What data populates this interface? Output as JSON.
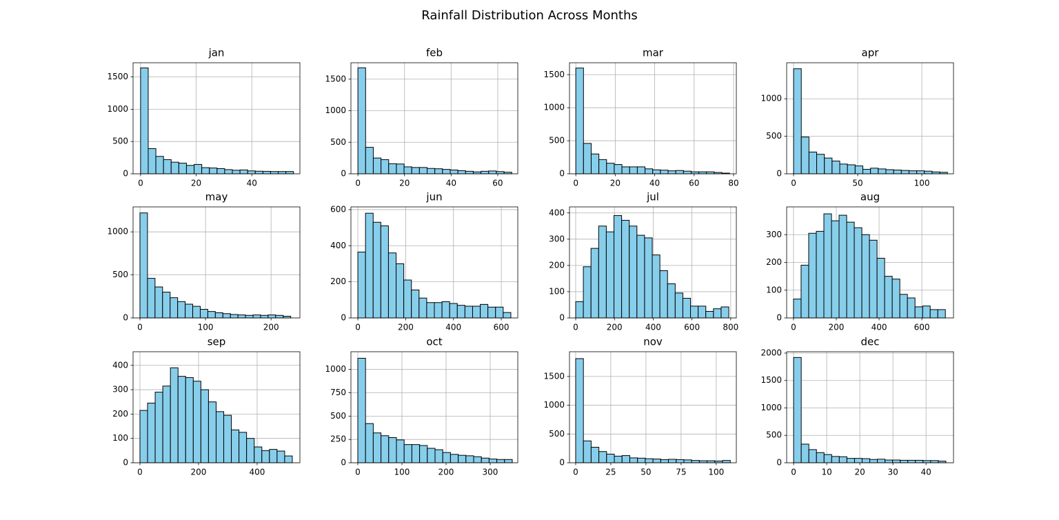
{
  "title": "Rainfall Distribution Across Months",
  "chart_data": [
    {
      "type": "histogram",
      "title": "jan",
      "color": "#87ceeb",
      "edgecolor": "#000000",
      "grid": true,
      "bins": [
        0,
        2.75,
        5.5,
        8.25,
        11,
        13.75,
        16.5,
        19.25,
        22,
        24.75,
        27.5,
        30.25,
        33,
        35.75,
        38.5,
        41.25,
        44,
        46.75,
        49.5,
        52.25,
        55
      ],
      "values": [
        1640,
        390,
        270,
        220,
        180,
        165,
        130,
        145,
        95,
        90,
        80,
        65,
        55,
        60,
        45,
        40,
        38,
        35,
        35,
        35
      ],
      "xlim": [
        -2.7,
        57.3
      ],
      "xticks": [
        0,
        20,
        40
      ],
      "ylim": [
        0,
        1720
      ],
      "yticks": [
        0,
        500,
        1000,
        1500
      ]
    },
    {
      "type": "histogram",
      "title": "feb",
      "color": "#87ceeb",
      "edgecolor": "#000000",
      "grid": true,
      "bins": [
        0,
        3.3,
        6.6,
        9.9,
        13.2,
        16.5,
        19.8,
        23.1,
        26.4,
        29.7,
        33,
        36.3,
        39.6,
        42.9,
        46.2,
        49.5,
        52.8,
        56.1,
        59.4,
        62.7,
        66
      ],
      "values": [
        1680,
        420,
        250,
        225,
        160,
        155,
        110,
        100,
        100,
        85,
        80,
        70,
        60,
        50,
        40,
        30,
        40,
        45,
        35,
        25
      ],
      "xlim": [
        -3,
        68.6
      ],
      "xticks": [
        0,
        20,
        40,
        60
      ],
      "ylim": [
        0,
        1760
      ],
      "yticks": [
        0,
        500,
        1000,
        1500
      ]
    },
    {
      "type": "histogram",
      "title": "mar",
      "color": "#87ceeb",
      "edgecolor": "#000000",
      "grid": true,
      "bins": [
        0,
        3.9,
        7.8,
        11.7,
        15.6,
        19.5,
        23.4,
        27.3,
        31.2,
        35.1,
        39,
        42.9,
        46.8,
        50.7,
        54.6,
        58.5,
        62.4,
        66.3,
        70.2,
        74.1,
        78
      ],
      "values": [
        1600,
        460,
        300,
        215,
        160,
        140,
        105,
        105,
        105,
        75,
        60,
        55,
        45,
        50,
        40,
        30,
        30,
        30,
        20,
        10
      ],
      "xlim": [
        -3.2,
        81.4
      ],
      "xticks": [
        0,
        20,
        40,
        60,
        80
      ],
      "ylim": [
        0,
        1680
      ],
      "yticks": [
        0,
        500,
        1000,
        1500
      ]
    },
    {
      "type": "histogram",
      "title": "apr",
      "color": "#87ceeb",
      "edgecolor": "#000000",
      "grid": true,
      "bins": [
        0,
        6,
        12,
        18,
        24,
        30,
        36,
        42,
        48,
        54,
        60,
        66,
        72,
        78,
        84,
        90,
        96,
        102,
        108,
        114,
        120
      ],
      "values": [
        1400,
        490,
        290,
        260,
        210,
        170,
        130,
        120,
        105,
        60,
        75,
        65,
        55,
        50,
        45,
        40,
        40,
        35,
        25,
        20
      ],
      "xlim": [
        -5.4,
        124.7
      ],
      "xticks": [
        0,
        50,
        100
      ],
      "ylim": [
        0,
        1480
      ],
      "yticks": [
        0,
        500,
        1000
      ]
    },
    {
      "type": "histogram",
      "title": "may",
      "color": "#87ceeb",
      "edgecolor": "#000000",
      "grid": true,
      "bins": [
        0,
        11.5,
        23,
        34.5,
        46,
        57.5,
        69,
        80.5,
        92,
        103.5,
        115,
        126.5,
        138,
        149.5,
        161,
        172.5,
        184,
        195.5,
        207,
        218.5,
        230
      ],
      "values": [
        1220,
        460,
        360,
        300,
        235,
        190,
        160,
        135,
        100,
        75,
        60,
        50,
        40,
        35,
        30,
        35,
        30,
        35,
        30,
        20
      ],
      "xlim": [
        -10.5,
        244
      ],
      "xticks": [
        0,
        100,
        200
      ],
      "ylim": [
        0,
        1290
      ],
      "yticks": [
        0,
        500,
        1000
      ]
    },
    {
      "type": "histogram",
      "title": "jun",
      "color": "#87ceeb",
      "edgecolor": "#000000",
      "grid": true,
      "bins": [
        0,
        32,
        64,
        96,
        128,
        160,
        192,
        224,
        256,
        288,
        320,
        352,
        384,
        416,
        448,
        480,
        512,
        544,
        576,
        608,
        640
      ],
      "values": [
        365,
        580,
        530,
        510,
        360,
        300,
        210,
        155,
        110,
        85,
        85,
        90,
        80,
        70,
        65,
        65,
        75,
        60,
        60,
        30
      ],
      "xlim": [
        -29,
        669
      ],
      "xticks": [
        0,
        200,
        400,
        600
      ],
      "ylim": [
        0,
        615
      ],
      "yticks": [
        0,
        200,
        400,
        600
      ]
    },
    {
      "type": "histogram",
      "title": "jul",
      "color": "#87ceeb",
      "edgecolor": "#000000",
      "grid": true,
      "bins": [
        0,
        39.5,
        79,
        118.5,
        158,
        197.5,
        237,
        276.5,
        316,
        355.5,
        395,
        434.5,
        474,
        513.5,
        553,
        592.5,
        632,
        671.5,
        711,
        750.5,
        790
      ],
      "values": [
        62,
        195,
        265,
        350,
        328,
        390,
        372,
        350,
        315,
        305,
        240,
        180,
        130,
        95,
        75,
        45,
        45,
        25,
        35,
        42
      ],
      "xlim": [
        -32,
        829
      ],
      "xticks": [
        0,
        200,
        400,
        600,
        800
      ],
      "ylim": [
        0,
        423
      ],
      "yticks": [
        0,
        100,
        200,
        300,
        400
      ]
    },
    {
      "type": "histogram",
      "title": "aug",
      "color": "#87ceeb",
      "edgecolor": "#000000",
      "grid": true,
      "bins": [
        0,
        35.5,
        71,
        106.5,
        142,
        177.5,
        213,
        248.5,
        284,
        319.5,
        355,
        390.5,
        426,
        461.5,
        497,
        532.5,
        568,
        603.5,
        639,
        674.5,
        710
      ],
      "values": [
        68,
        190,
        305,
        312,
        375,
        350,
        370,
        345,
        325,
        300,
        280,
        215,
        150,
        140,
        85,
        72,
        40,
        43,
        30,
        30
      ],
      "xlim": [
        -32,
        748
      ],
      "xticks": [
        0,
        200,
        400,
        600
      ],
      "ylim": [
        0,
        400
      ],
      "yticks": [
        0,
        100,
        200,
        300
      ]
    },
    {
      "type": "histogram",
      "title": "sep",
      "color": "#87ceeb",
      "edgecolor": "#000000",
      "grid": true,
      "bins": [
        0,
        26,
        52,
        78,
        104,
        130,
        156,
        182,
        208,
        234,
        260,
        286,
        312,
        338,
        364,
        390,
        416,
        442,
        468,
        494,
        520
      ],
      "values": [
        215,
        245,
        290,
        315,
        390,
        355,
        350,
        335,
        300,
        250,
        210,
        195,
        135,
        125,
        100,
        65,
        50,
        55,
        48,
        28
      ],
      "xlim": [
        -23.5,
        546
      ],
      "xticks": [
        0,
        200,
        400
      ],
      "ylim": [
        0,
        456
      ],
      "yticks": [
        0,
        100,
        200,
        300,
        400
      ]
    },
    {
      "type": "histogram",
      "title": "oct",
      "color": "#87ceeb",
      "edgecolor": "#000000",
      "grid": true,
      "bins": [
        0,
        17.5,
        35,
        52.5,
        70,
        87.5,
        105,
        122.5,
        140,
        157.5,
        175,
        192.5,
        210,
        227.5,
        245,
        262.5,
        280,
        297.5,
        315,
        332.5,
        350
      ],
      "values": [
        1120,
        420,
        320,
        290,
        270,
        245,
        195,
        195,
        185,
        155,
        140,
        110,
        90,
        80,
        75,
        65,
        50,
        40,
        35,
        35
      ],
      "xlim": [
        -15.6,
        362.5
      ],
      "xticks": [
        0,
        100,
        200,
        300
      ],
      "ylim": [
        0,
        1190
      ],
      "yticks": [
        0,
        250,
        500,
        750,
        1000
      ]
    },
    {
      "type": "histogram",
      "title": "nov",
      "color": "#87ceeb",
      "edgecolor": "#000000",
      "grid": true,
      "bins": [
        0,
        5.5,
        11,
        16.5,
        22,
        27.5,
        33,
        38.5,
        44,
        49.5,
        55,
        60.5,
        66,
        71.5,
        77,
        82.5,
        88,
        93.5,
        99,
        104.5,
        110
      ],
      "values": [
        1810,
        380,
        270,
        195,
        150,
        115,
        125,
        85,
        80,
        70,
        65,
        55,
        60,
        55,
        50,
        40,
        35,
        35,
        30,
        40
      ],
      "xlim": [
        -4.4,
        114.3
      ],
      "xticks": [
        0,
        25,
        50,
        75,
        100
      ],
      "ylim": [
        0,
        1930
      ],
      "yticks": [
        0,
        500,
        1000,
        1500
      ]
    },
    {
      "type": "histogram",
      "title": "dec",
      "color": "#87ceeb",
      "edgecolor": "#000000",
      "grid": true,
      "bins": [
        0,
        2.3,
        4.6,
        6.9,
        9.2,
        11.5,
        13.8,
        16.1,
        18.4,
        20.7,
        23,
        25.3,
        27.6,
        29.9,
        32.2,
        34.5,
        36.8,
        39.1,
        41.4,
        43.7,
        46
      ],
      "values": [
        1920,
        340,
        240,
        185,
        150,
        115,
        110,
        80,
        80,
        75,
        60,
        65,
        50,
        50,
        45,
        45,
        45,
        40,
        40,
        30
      ],
      "xlim": [
        -2.1,
        48.3
      ],
      "xticks": [
        0,
        10,
        20,
        30,
        40
      ],
      "ylim": [
        0,
        2025
      ],
      "yticks": [
        0,
        500,
        1000,
        1500,
        2000
      ]
    }
  ]
}
